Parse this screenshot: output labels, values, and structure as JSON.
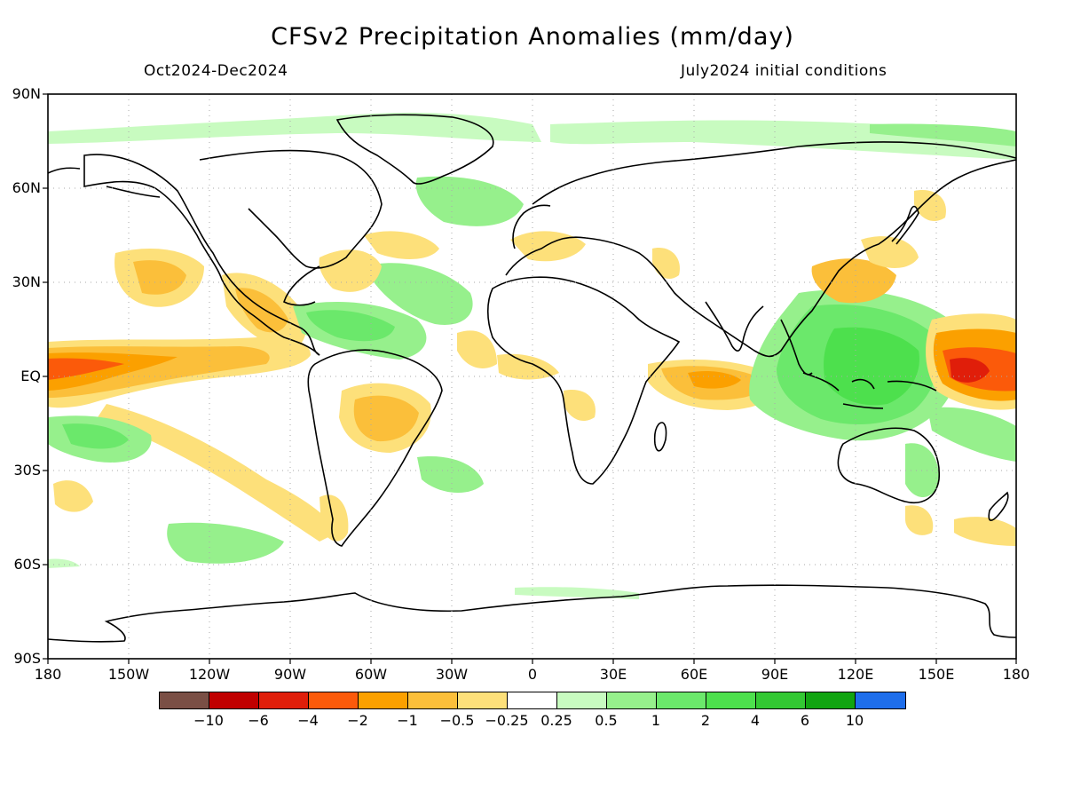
{
  "title": "CFSv2 Precipitation Anomalies (mm/day)",
  "period": "Oct2024-Dec2024",
  "init": "July2024 initial conditions",
  "y_ticks": [
    "90N",
    "60N",
    "30N",
    "EQ",
    "30S",
    "60S",
    "90S"
  ],
  "x_ticks": [
    "180",
    "150W",
    "120W",
    "90W",
    "60W",
    "30W",
    "0",
    "30E",
    "60E",
    "90E",
    "120E",
    "150E",
    "180"
  ],
  "colorbar": {
    "colors": [
      "#7a4f45",
      "#c00000",
      "#e01e0a",
      "#fb5a0a",
      "#fba000",
      "#fbbf3a",
      "#fde07a",
      "#ffffff",
      "#c8fbc0",
      "#96f08c",
      "#6be86b",
      "#4de04d",
      "#33c833",
      "#11a411",
      "#1e6eeb"
    ],
    "labels": [
      "-10",
      "-6",
      "-4",
      "-2",
      "-1",
      "-0.5",
      "-0.25",
      "0.25",
      "0.5",
      "1",
      "2",
      "4",
      "6",
      "10"
    ]
  }
}
